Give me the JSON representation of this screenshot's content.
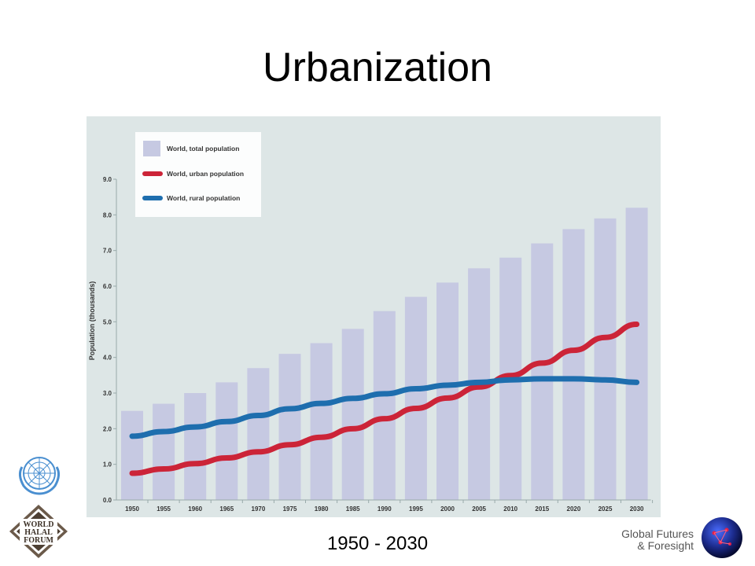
{
  "slide": {
    "title": "Urbanization",
    "subtitle": "1950 - 2030",
    "footer_brand_line1": "Global Futures",
    "footer_brand_line2": "& Foresight"
  },
  "logos": {
    "left_top": "un-emblem-icon",
    "left_bottom": "world-halal-forum-logo",
    "left_bottom_text": [
      "WORLD",
      "HALAL",
      "FORUM"
    ],
    "right_bottom": "globe-network-icon"
  },
  "colors": {
    "chart_background": "#dde6e6",
    "bar_color": "#c6c9e2",
    "urban_color": "#cc2438",
    "rural_color": "#1e6eae"
  },
  "chart_data": {
    "type": "bar",
    "ylabel": "Population (thousands)",
    "ylim": [
      0,
      9
    ],
    "yticks": [
      "0.0",
      "1.0",
      "2.0",
      "3.0",
      "4.0",
      "5.0",
      "6.0",
      "7.0",
      "8.0",
      "9.0"
    ],
    "categories": [
      "1950",
      "1955",
      "1960",
      "1965",
      "1970",
      "1975",
      "1980",
      "1985",
      "1990",
      "1995",
      "2000",
      "2005",
      "2010",
      "2015",
      "2020",
      "2025",
      "2030"
    ],
    "legend_position": "top-left",
    "series": [
      {
        "name": "World, total population",
        "kind": "bar",
        "values": [
          2.5,
          2.7,
          3.0,
          3.3,
          3.7,
          4.1,
          4.4,
          4.8,
          5.3,
          5.7,
          6.1,
          6.5,
          6.8,
          7.2,
          7.6,
          7.9,
          8.2
        ]
      },
      {
        "name": "World, urban population",
        "kind": "line",
        "values": [
          0.75,
          0.87,
          1.02,
          1.18,
          1.35,
          1.55,
          1.76,
          2.0,
          2.28,
          2.57,
          2.86,
          3.17,
          3.49,
          3.84,
          4.2,
          4.56,
          4.93
        ]
      },
      {
        "name": "World, rural population",
        "kind": "line",
        "values": [
          1.79,
          1.92,
          2.05,
          2.2,
          2.37,
          2.56,
          2.71,
          2.85,
          2.98,
          3.12,
          3.22,
          3.3,
          3.37,
          3.4,
          3.4,
          3.37,
          3.3
        ]
      }
    ]
  }
}
